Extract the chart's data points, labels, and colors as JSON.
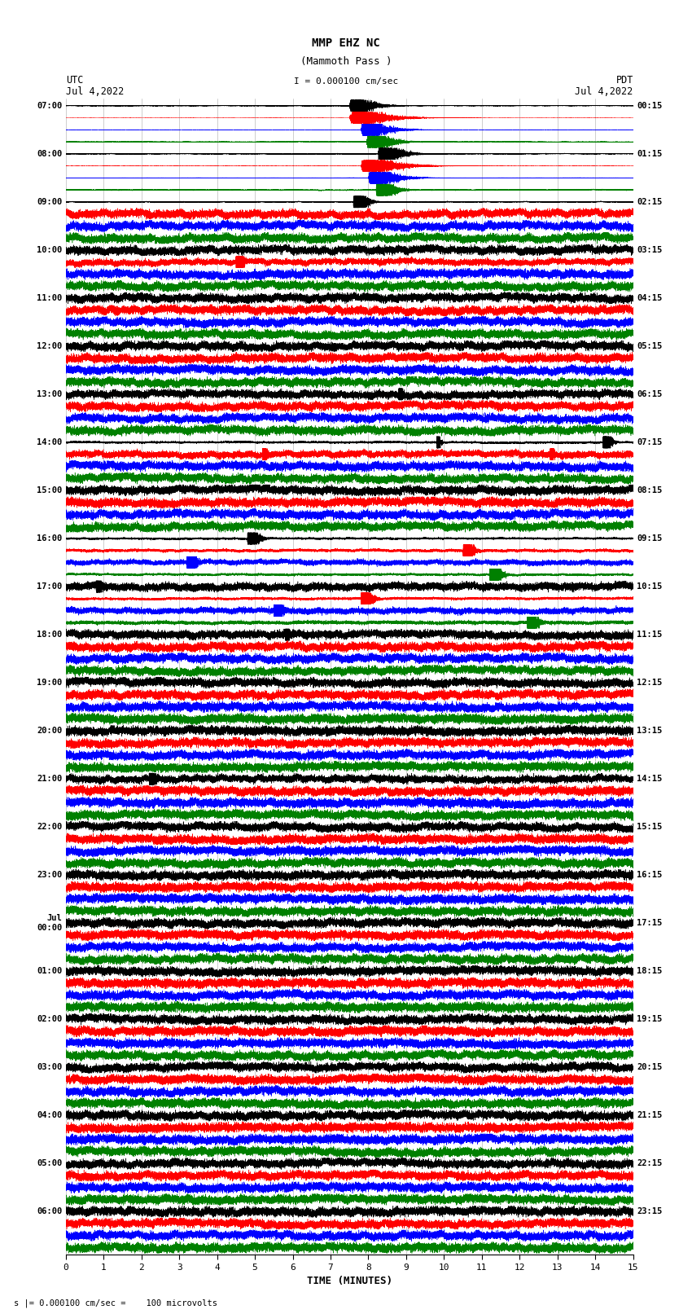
{
  "title_line1": "MMP EHZ NC",
  "title_line2": "(Mammoth Pass )",
  "scale_text": "I = 0.000100 cm/sec",
  "bottom_text": "s |= 0.000100 cm/sec =    100 microvolts",
  "utc_label": "UTC",
  "utc_date": "Jul 4,2022",
  "pdt_label": "PDT",
  "pdt_date": "Jul 4,2022",
  "xlabel": "TIME (MINUTES)",
  "colors": [
    "black",
    "red",
    "blue",
    "green"
  ],
  "bg_color": "white",
  "n_rows": 96,
  "n_minutes": 15,
  "utc_times_with_idx": [
    [
      0,
      "07:00"
    ],
    [
      4,
      "08:00"
    ],
    [
      8,
      "09:00"
    ],
    [
      12,
      "10:00"
    ],
    [
      16,
      "11:00"
    ],
    [
      20,
      "12:00"
    ],
    [
      24,
      "13:00"
    ],
    [
      28,
      "14:00"
    ],
    [
      32,
      "15:00"
    ],
    [
      36,
      "16:00"
    ],
    [
      40,
      "17:00"
    ],
    [
      44,
      "18:00"
    ],
    [
      48,
      "19:00"
    ],
    [
      52,
      "20:00"
    ],
    [
      56,
      "21:00"
    ],
    [
      60,
      "22:00"
    ],
    [
      64,
      "23:00"
    ],
    [
      68,
      "Jul\n00:00"
    ],
    [
      72,
      "01:00"
    ],
    [
      76,
      "02:00"
    ],
    [
      80,
      "03:00"
    ],
    [
      84,
      "04:00"
    ],
    [
      88,
      "05:00"
    ],
    [
      92,
      "06:00"
    ]
  ],
  "pdt_times_with_idx": [
    [
      0,
      "00:15"
    ],
    [
      4,
      "01:15"
    ],
    [
      8,
      "02:15"
    ],
    [
      12,
      "03:15"
    ],
    [
      16,
      "04:15"
    ],
    [
      20,
      "05:15"
    ],
    [
      24,
      "06:15"
    ],
    [
      28,
      "07:15"
    ],
    [
      32,
      "08:15"
    ],
    [
      36,
      "09:15"
    ],
    [
      40,
      "10:15"
    ],
    [
      44,
      "11:15"
    ],
    [
      48,
      "12:15"
    ],
    [
      52,
      "13:15"
    ],
    [
      56,
      "14:15"
    ],
    [
      60,
      "15:15"
    ],
    [
      64,
      "16:15"
    ],
    [
      68,
      "17:15"
    ],
    [
      72,
      "18:15"
    ],
    [
      76,
      "19:15"
    ],
    [
      80,
      "20:15"
    ],
    [
      84,
      "21:15"
    ],
    [
      88,
      "22:15"
    ],
    [
      92,
      "23:15"
    ]
  ],
  "seed": 12345
}
